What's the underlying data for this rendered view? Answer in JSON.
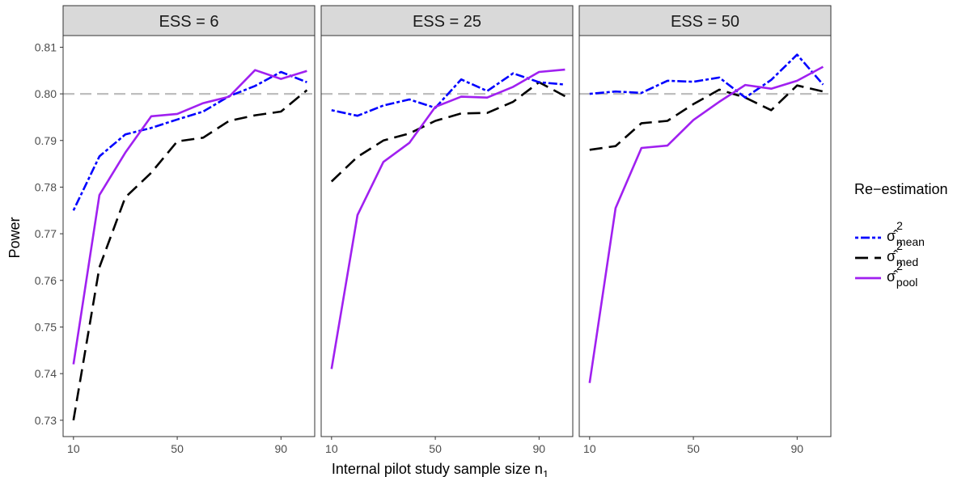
{
  "chart_data": {
    "type": "line",
    "xlabel": "Internal pilot study sample size n",
    "xlabel_subscript": "1",
    "ylabel": "Power",
    "x": [
      10,
      20,
      30,
      40,
      50,
      60,
      70,
      80,
      90,
      100
    ],
    "x_ticks": [
      "10",
      "50",
      "90"
    ],
    "y_ticks": [
      "0.73",
      "0.74",
      "0.75",
      "0.76",
      "0.77",
      "0.78",
      "0.79",
      "0.80",
      "0.81"
    ],
    "xlim": [
      6,
      103
    ],
    "ylim": [
      0.7265,
      0.8125
    ],
    "reference_line": 0.8,
    "grid": false,
    "legend": {
      "title": "Re−estimation",
      "position": "right",
      "entries": [
        {
          "label": "σ̂",
          "superscript": "2",
          "subscript": "mean",
          "color": "#0000FF",
          "linetype": "dotdash"
        },
        {
          "label": "σ̂",
          "superscript": "2",
          "subscript": "med",
          "color": "#000000",
          "linetype": "longdash"
        },
        {
          "label": "σ̂",
          "superscript": "2",
          "subscript": "pool",
          "color": "#A020F0",
          "linetype": "solid"
        }
      ]
    },
    "panels": [
      {
        "strip": "ESS = 6",
        "series": [
          {
            "key": "mean",
            "values": [
              0.775,
              0.7866,
              0.7913,
              0.7927,
              0.7945,
              0.7962,
              0.7995,
              0.8017,
              0.8047,
              0.8025
            ]
          },
          {
            "key": "med",
            "values": [
              0.73,
              0.7628,
              0.7778,
              0.7831,
              0.7898,
              0.7906,
              0.7942,
              0.7954,
              0.7962,
              0.8008
            ]
          },
          {
            "key": "pool",
            "values": [
              0.742,
              0.7783,
              0.7874,
              0.7952,
              0.7957,
              0.798,
              0.7994,
              0.8051,
              0.8032,
              0.8049
            ]
          }
        ]
      },
      {
        "strip": "ESS = 25",
        "series": [
          {
            "key": "mean",
            "values": [
              0.7965,
              0.7953,
              0.7975,
              0.7988,
              0.797,
              0.8031,
              0.8006,
              0.8044,
              0.8025,
              0.802
            ]
          },
          {
            "key": "med",
            "values": [
              0.7812,
              0.7865,
              0.79,
              0.7915,
              0.7942,
              0.7958,
              0.7959,
              0.7983,
              0.8025,
              0.7995
            ]
          },
          {
            "key": "pool",
            "values": [
              0.741,
              0.774,
              0.7854,
              0.7895,
              0.7972,
              0.7994,
              0.7992,
              0.8015,
              0.8047,
              0.8052
            ]
          }
        ]
      },
      {
        "strip": "ESS = 50",
        "series": [
          {
            "key": "mean",
            "values": [
              0.8,
              0.8005,
              0.8002,
              0.8028,
              0.8026,
              0.8035,
              0.7992,
              0.803,
              0.8084,
              0.802
            ]
          },
          {
            "key": "med",
            "values": [
              0.788,
              0.7888,
              0.7937,
              0.7942,
              0.7978,
              0.8009,
              0.7992,
              0.7965,
              0.8018,
              0.8005
            ]
          },
          {
            "key": "pool",
            "values": [
              0.738,
              0.7755,
              0.7884,
              0.7889,
              0.7944,
              0.7983,
              0.8019,
              0.8011,
              0.8028,
              0.8058
            ]
          }
        ]
      }
    ]
  }
}
